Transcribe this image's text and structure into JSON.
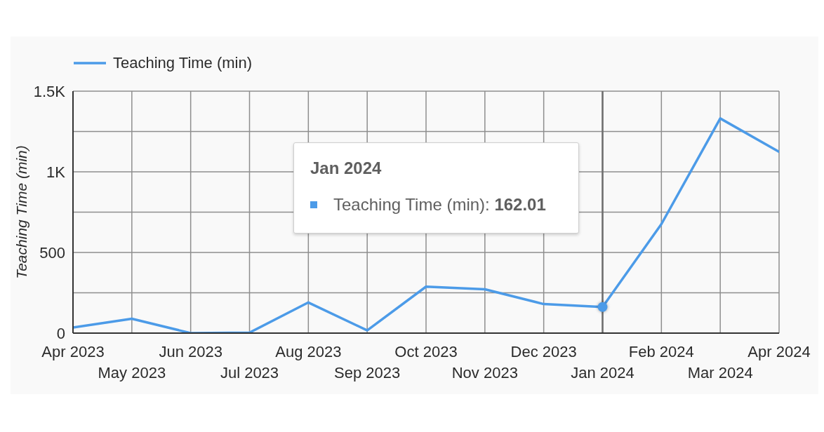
{
  "chart_data": {
    "type": "line",
    "categories": [
      "Apr 2023",
      "May 2023",
      "Jun 2023",
      "Jul 2023",
      "Aug 2023",
      "Sep 2023",
      "Oct 2023",
      "Nov 2023",
      "Dec 2023",
      "Jan 2024",
      "Feb 2024",
      "Mar 2024",
      "Apr 2024"
    ],
    "series": [
      {
        "name": "Teaching Time (min)",
        "color": "#4c9be8",
        "values": [
          35,
          89,
          0,
          3,
          190,
          17,
          288,
          272,
          180,
          162.01,
          676,
          1331,
          1124
        ]
      },
      {
        "type": "scatter",
        "x": [
          "Jan 2024"
        ],
        "values": [
          162.01
        ],
        "color": "#4c9be8",
        "marker": "circle"
      }
    ],
    "ylabel": "Teaching Time (min)",
    "ylim": [
      0,
      1500
    ],
    "yticks": [
      0,
      {
        "value": 250,
        "label": null
      },
      500,
      {
        "value": 750,
        "label": null
      },
      {
        "value": 1000,
        "label": "1K"
      },
      {
        "value": 1250,
        "label": null
      },
      {
        "value": 1500,
        "label": "1.5K"
      }
    ],
    "ref_lines": [
      {
        "axis": "x",
        "value": "Jan 2024",
        "color": "#6e6e6e"
      }
    ],
    "grid": true,
    "legend": "top left",
    "marker": "none",
    "line_style": "solid",
    "annotations": [
      "Jan 2024\nTeaching Time (min): 162.01"
    ]
  }
}
